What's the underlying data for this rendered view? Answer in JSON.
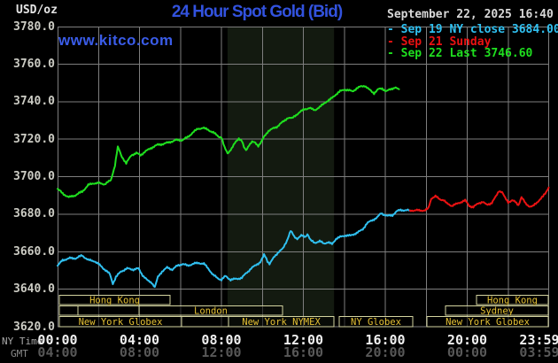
{
  "header": {
    "unit": "USD/oz",
    "title": "24 Hour Spot Gold (Bid)",
    "datetime": "September 22, 2025 16:40"
  },
  "watermark": "www.kitco.com",
  "legend": [
    {
      "dash": "-",
      "label": "Sep 19 NY close 3684.00",
      "color": "#30c0f0"
    },
    {
      "dash": "-",
      "label": "Sep 21 Sunday",
      "color": "#ea1212"
    },
    {
      "dash": "-",
      "label": "Sep 22 Last 3746.60",
      "color": "#1fe01f"
    }
  ],
  "y_axis": {
    "labels": [
      "3780.0",
      "3760.0",
      "3740.0",
      "3720.0",
      "3700.0",
      "3680.0",
      "3660.0",
      "3640.0",
      "3620.0"
    ]
  },
  "x_axis": {
    "ny_label": "NY Time",
    "gmt_label": "GMT",
    "ny_times": [
      "00:00",
      "04:00",
      "08:00",
      "12:00",
      "16:00",
      "20:00",
      "23:59"
    ],
    "gmt_times": [
      "04:00",
      "08:00",
      "12:00",
      "16:00",
      "20:00",
      "00:00",
      "03:59"
    ]
  },
  "sessions": {
    "rows": [
      {
        "boxes": [
          {
            "label": "Hong Kong",
            "h1": 0.09,
            "h2": 5.49
          },
          {
            "label": "Hong Kong",
            "h1": 20.45,
            "h2": 23.96
          }
        ]
      },
      {
        "boxes": [
          {
            "label": "",
            "h1": 0.09,
            "h2": 1.0
          },
          {
            "label": "",
            "h1": 1.0,
            "h2": 3.98
          },
          {
            "label": "London",
            "h1": 3.98,
            "h2": 10.98
          },
          {
            "label": "Sydney",
            "h1": 18.94,
            "h2": 23.96
          }
        ]
      },
      {
        "boxes": [
          {
            "label": "New York Globex",
            "h1": 0.09,
            "h2": 6.05
          },
          {
            "label": "",
            "h1": 6.05,
            "h2": 8.35
          },
          {
            "label": "New York NYMEX",
            "h1": 8.35,
            "h2": 13.49
          },
          {
            "label": "NY Globex",
            "h1": 13.75,
            "h2": 17.34
          },
          {
            "label": "New York Globex",
            "h1": 18.03,
            "h2": 23.96
          }
        ]
      }
    ]
  },
  "colors": {
    "background": "#000000",
    "grid": "#7e7e7e",
    "band": "#131a10",
    "green": "#1fe01f",
    "cyan": "#30c0f0",
    "red": "#ea1212",
    "box_border": "#d4d4a0",
    "session_text": "#e6c235",
    "title_blue": "#3252de",
    "ny_time_text": "#f0f0f0",
    "gmt_text": "#585858",
    "ny_axis_name": "#a8a8a8",
    "gmt_axis_name": "#8a8a8a"
  },
  "chart_data": {
    "type": "line",
    "title": "24 Hour Spot Gold (Bid)",
    "xlabel": "NY Time (hours)",
    "ylabel": "USD/oz",
    "xlim": [
      0,
      24
    ],
    "ylim": [
      3620,
      3780
    ],
    "y_ticks": [
      3780,
      3760,
      3740,
      3720,
      3700,
      3680,
      3660,
      3640,
      3620
    ],
    "grid": true,
    "legend_position": "top-right",
    "nymex_floor_band_hours": [
      8.3,
      13.5
    ],
    "series": [
      {
        "name": "Sep 22 Last 3746.60",
        "color": "#1fe01f",
        "points": [
          [
            0,
            3693.5
          ],
          [
            0.25,
            3691
          ],
          [
            0.55,
            3689
          ],
          [
            0.85,
            3690
          ],
          [
            1.2,
            3692
          ],
          [
            1.5,
            3695.5
          ],
          [
            1.75,
            3696.5
          ],
          [
            2.0,
            3696.5
          ],
          [
            2.3,
            3696
          ],
          [
            2.6,
            3698
          ],
          [
            2.8,
            3706
          ],
          [
            2.94,
            3716
          ],
          [
            3.1,
            3711.5
          ],
          [
            3.35,
            3707
          ],
          [
            3.6,
            3711.5
          ],
          [
            3.85,
            3712.5
          ],
          [
            4.05,
            3711.5
          ],
          [
            4.3,
            3713.5
          ],
          [
            4.6,
            3715.5
          ],
          [
            4.9,
            3717
          ],
          [
            5.2,
            3717.5
          ],
          [
            5.5,
            3718.5
          ],
          [
            5.8,
            3719.5
          ],
          [
            6.1,
            3719.5
          ],
          [
            6.35,
            3721
          ],
          [
            6.6,
            3723.5
          ],
          [
            6.85,
            3725.5
          ],
          [
            7.1,
            3726
          ],
          [
            7.35,
            3725
          ],
          [
            7.6,
            3723.5
          ],
          [
            7.85,
            3721.5
          ],
          [
            8.0,
            3721
          ],
          [
            8.15,
            3715.5
          ],
          [
            8.3,
            3712.5
          ],
          [
            8.5,
            3715
          ],
          [
            8.7,
            3718.5
          ],
          [
            8.85,
            3720.5
          ],
          [
            9.0,
            3719
          ],
          [
            9.1,
            3715.5
          ],
          [
            9.2,
            3714
          ],
          [
            9.35,
            3717
          ],
          [
            9.5,
            3718.5
          ],
          [
            9.65,
            3718
          ],
          [
            9.8,
            3716.5
          ],
          [
            9.95,
            3718.5
          ],
          [
            10.1,
            3721.5
          ],
          [
            10.3,
            3724.5
          ],
          [
            10.5,
            3725.5
          ],
          [
            10.7,
            3726.5
          ],
          [
            10.85,
            3728
          ],
          [
            11.05,
            3729.5
          ],
          [
            11.25,
            3731.5
          ],
          [
            11.45,
            3731
          ],
          [
            11.65,
            3733
          ],
          [
            11.85,
            3734.5
          ],
          [
            12.05,
            3736
          ],
          [
            12.3,
            3736.5
          ],
          [
            12.55,
            3735.5
          ],
          [
            12.8,
            3737
          ],
          [
            13.05,
            3739.5
          ],
          [
            13.3,
            3741
          ],
          [
            13.55,
            3743.5
          ],
          [
            13.8,
            3745.5
          ],
          [
            14.0,
            3746.5
          ],
          [
            14.2,
            3746
          ],
          [
            14.4,
            3745.5
          ],
          [
            14.6,
            3747
          ],
          [
            14.8,
            3748
          ],
          [
            15.0,
            3748.5
          ],
          [
            15.2,
            3746.5
          ],
          [
            15.45,
            3744.5
          ],
          [
            15.65,
            3746.5
          ],
          [
            15.85,
            3747
          ],
          [
            16.05,
            3745.5
          ],
          [
            16.25,
            3746.5
          ],
          [
            16.45,
            3747.5
          ],
          [
            16.67,
            3746.6
          ]
        ]
      },
      {
        "name": "Sep 19 NY close 3684.00",
        "color": "#30c0f0",
        "points": [
          [
            0,
            3652.5
          ],
          [
            0.25,
            3655.5
          ],
          [
            0.6,
            3656.5
          ],
          [
            0.9,
            3656.5
          ],
          [
            1.2,
            3658
          ],
          [
            1.5,
            3655.5
          ],
          [
            1.8,
            3655
          ],
          [
            2.1,
            3652.5
          ],
          [
            2.35,
            3650
          ],
          [
            2.55,
            3648
          ],
          [
            2.7,
            3643
          ],
          [
            2.85,
            3646.5
          ],
          [
            3.1,
            3649.5
          ],
          [
            3.4,
            3651
          ],
          [
            3.7,
            3650.5
          ],
          [
            3.95,
            3651
          ],
          [
            4.15,
            3647.5
          ],
          [
            4.4,
            3644.5
          ],
          [
            4.6,
            3643.5
          ],
          [
            4.75,
            3641
          ],
          [
            4.9,
            3646.5
          ],
          [
            5.1,
            3649.5
          ],
          [
            5.35,
            3651.5
          ],
          [
            5.6,
            3650.5
          ],
          [
            5.85,
            3652.5
          ],
          [
            6.1,
            3653.5
          ],
          [
            6.35,
            3652.5
          ],
          [
            6.6,
            3653.5
          ],
          [
            6.9,
            3654
          ],
          [
            7.15,
            3653.5
          ],
          [
            7.4,
            3650.5
          ],
          [
            7.6,
            3647.5
          ],
          [
            7.8,
            3646
          ],
          [
            8.0,
            3645
          ],
          [
            8.2,
            3647
          ],
          [
            8.45,
            3645
          ],
          [
            8.7,
            3645.5
          ],
          [
            9.0,
            3646
          ],
          [
            9.2,
            3648.5
          ],
          [
            9.45,
            3651
          ],
          [
            9.7,
            3653
          ],
          [
            9.9,
            3654.5
          ],
          [
            10.08,
            3658.5
          ],
          [
            10.25,
            3655
          ],
          [
            10.35,
            3653.5
          ],
          [
            10.6,
            3657.5
          ],
          [
            10.8,
            3660
          ],
          [
            11.0,
            3661.5
          ],
          [
            11.2,
            3666
          ],
          [
            11.38,
            3671.5
          ],
          [
            11.55,
            3668
          ],
          [
            11.7,
            3667
          ],
          [
            11.9,
            3668.5
          ],
          [
            12.1,
            3668
          ],
          [
            12.2,
            3669.5
          ],
          [
            12.35,
            3666
          ],
          [
            12.55,
            3664.8
          ],
          [
            12.8,
            3665.5
          ],
          [
            13.0,
            3664.4
          ],
          [
            13.2,
            3665
          ],
          [
            13.4,
            3664
          ],
          [
            13.6,
            3667
          ],
          [
            13.85,
            3668
          ],
          [
            14.05,
            3668.7
          ],
          [
            14.3,
            3668.5
          ],
          [
            14.5,
            3669.5
          ],
          [
            14.7,
            3670.5
          ],
          [
            14.9,
            3672
          ],
          [
            15.1,
            3675
          ],
          [
            15.35,
            3676.7
          ],
          [
            15.6,
            3678.2
          ],
          [
            15.8,
            3680.5
          ],
          [
            16.1,
            3679
          ],
          [
            16.35,
            3679.5
          ],
          [
            16.55,
            3681.4
          ],
          [
            16.75,
            3682.3
          ],
          [
            17.0,
            3682
          ],
          [
            17.2,
            3682
          ]
        ]
      },
      {
        "name": "Sep 21 Sunday",
        "color": "#ea1212",
        "points": [
          [
            17.2,
            3682
          ],
          [
            17.6,
            3682
          ],
          [
            17.95,
            3682
          ],
          [
            18.1,
            3683
          ],
          [
            18.25,
            3688.5
          ],
          [
            18.45,
            3689.5
          ],
          [
            18.65,
            3688
          ],
          [
            18.85,
            3687.5
          ],
          [
            19.0,
            3685.7
          ],
          [
            19.25,
            3684.5
          ],
          [
            19.5,
            3685.5
          ],
          [
            19.7,
            3686.5
          ],
          [
            19.9,
            3687.3
          ],
          [
            20.1,
            3684.5
          ],
          [
            20.3,
            3683.7
          ],
          [
            20.55,
            3685.9
          ],
          [
            20.75,
            3686.5
          ],
          [
            20.95,
            3685
          ],
          [
            21.2,
            3686
          ],
          [
            21.4,
            3689.4
          ],
          [
            21.55,
            3692.5
          ],
          [
            21.7,
            3691.7
          ],
          [
            21.85,
            3688.6
          ],
          [
            22.0,
            3686.5
          ],
          [
            22.2,
            3687.3
          ],
          [
            22.35,
            3686.5
          ],
          [
            22.5,
            3684.9
          ],
          [
            22.65,
            3689
          ],
          [
            22.85,
            3685.7
          ],
          [
            23.05,
            3684.1
          ],
          [
            23.2,
            3684.1
          ],
          [
            23.35,
            3685.7
          ],
          [
            23.5,
            3687.3
          ],
          [
            23.7,
            3689.4
          ],
          [
            23.85,
            3691.7
          ],
          [
            23.98,
            3694.2
          ]
        ]
      }
    ]
  }
}
